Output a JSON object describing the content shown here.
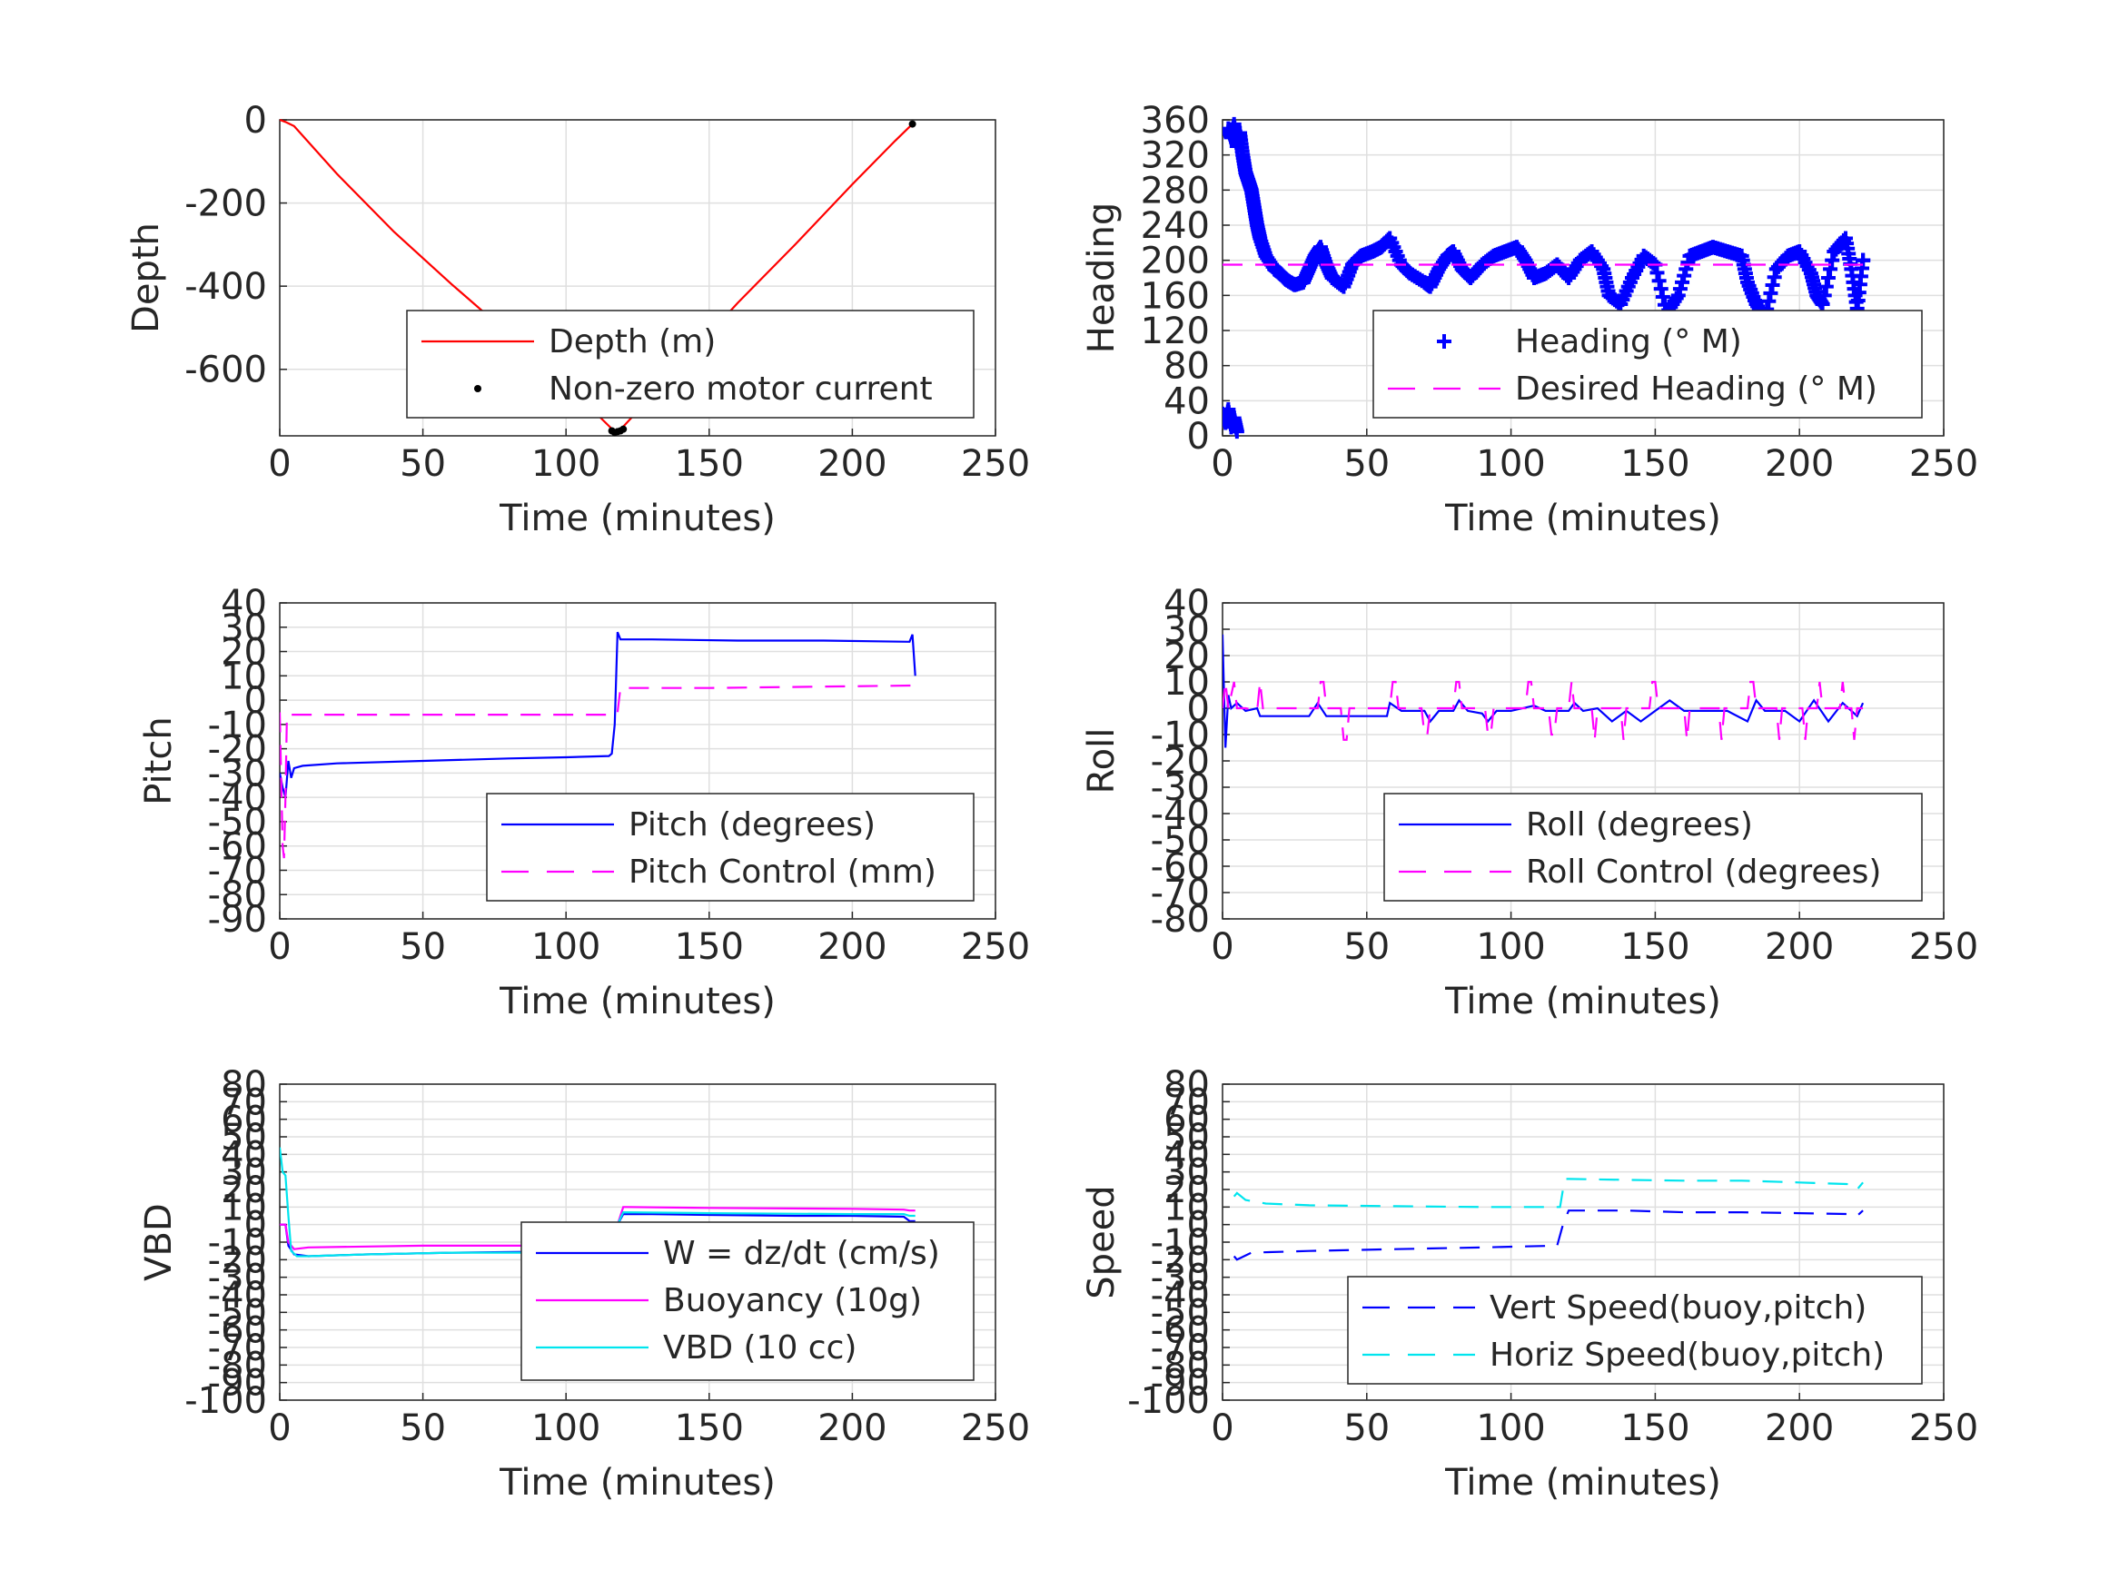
{
  "figure": {
    "panels": [
      {
        "id": "depth",
        "xlabel": "Time (minutes)",
        "ylabel": "Depth",
        "xticks": [
          "0",
          "50",
          "100",
          "150",
          "200",
          "250"
        ],
        "yticks": [
          "0",
          "-200",
          "-400",
          "-600"
        ],
        "legend": [
          "Depth (m)",
          "Non-zero motor current"
        ]
      },
      {
        "id": "heading",
        "xlabel": "Time (minutes)",
        "ylabel": "Heading",
        "xticks": [
          "0",
          "50",
          "100",
          "150",
          "200",
          "250"
        ],
        "yticks": [
          "360",
          "320",
          "280",
          "240",
          "200",
          "160",
          "120",
          "80",
          "40",
          "0"
        ],
        "legend": [
          "Heading (° M)",
          "Desired Heading (° M)"
        ]
      },
      {
        "id": "pitch",
        "xlabel": "Time (minutes)",
        "ylabel": "Pitch",
        "xticks": [
          "0",
          "50",
          "100",
          "150",
          "200",
          "250"
        ],
        "yticks": [
          "40",
          "30",
          "20",
          "10",
          "0",
          "-10",
          "-20",
          "-30",
          "-40",
          "-50",
          "-60",
          "-70",
          "-80",
          "-90"
        ],
        "legend": [
          "Pitch (degrees)",
          "Pitch Control (mm)"
        ]
      },
      {
        "id": "roll",
        "xlabel": "Time (minutes)",
        "ylabel": "Roll",
        "xticks": [
          "0",
          "50",
          "100",
          "150",
          "200",
          "250"
        ],
        "yticks": [
          "40",
          "30",
          "20",
          "10",
          "0",
          "-10",
          "-20",
          "-30",
          "-40",
          "-50",
          "-60",
          "-70",
          "-80"
        ],
        "legend": [
          "Roll (degrees)",
          "Roll Control (degrees)"
        ]
      },
      {
        "id": "vbd",
        "xlabel": "Time (minutes)",
        "ylabel": "VBD",
        "xticks": [
          "0",
          "50",
          "100",
          "150",
          "200",
          "250"
        ],
        "yticks": [
          "80",
          "70",
          "60",
          "50",
          "40",
          "30",
          "20",
          "10",
          "0",
          "-10",
          "-20",
          "-30",
          "-40",
          "-50",
          "-60",
          "-70",
          "-80",
          "-90",
          "-100"
        ],
        "legend": [
          "W = dz/dt (cm/s)",
          "Buoyancy (10g)",
          "VBD (10 cc)"
        ]
      },
      {
        "id": "speed",
        "xlabel": "Time (minutes)",
        "ylabel": "Speed",
        "xticks": [
          "0",
          "50",
          "100",
          "150",
          "200",
          "250"
        ],
        "yticks": [
          "80",
          "70",
          "60",
          "50",
          "40",
          "30",
          "20",
          "10",
          "0",
          "-10",
          "-20",
          "-30",
          "-40",
          "-50",
          "-60",
          "-70",
          "-80",
          "-90",
          "-100"
        ],
        "legend": [
          "Vert Speed(buoy,pitch)",
          "Horiz Speed(buoy,pitch)"
        ]
      }
    ]
  },
  "colors": {
    "red": "#ff0000",
    "blue": "#0000ff",
    "magenta": "#ff00ff",
    "cyan": "#00e5ee",
    "black": "#000000",
    "grid": "#dfdfdf",
    "axis": "#262626"
  },
  "chart_data": [
    {
      "type": "line",
      "panel": "depth",
      "xlabel": "Time (minutes)",
      "ylabel": "Depth",
      "xlim": [
        0,
        250
      ],
      "ylim": [
        -760,
        0
      ],
      "grid": true,
      "legend_position": "bottom-right",
      "series": [
        {
          "name": "Depth (m)",
          "color": "#ff0000",
          "style": "solid",
          "x": [
            0,
            2,
            5,
            20,
            40,
            60,
            80,
            100,
            117,
            119,
            140,
            160,
            180,
            200,
            215,
            221
          ],
          "y": [
            0,
            -5,
            -15,
            -130,
            -270,
            -395,
            -515,
            -635,
            -750,
            -745,
            -590,
            -440,
            -300,
            -155,
            -50,
            -10
          ]
        },
        {
          "name": "Non-zero motor current",
          "color": "#000000",
          "style": "points",
          "x": [
            116,
            117,
            118,
            119,
            120,
            221
          ],
          "y": [
            -748,
            -752,
            -750,
            -748,
            -744,
            -10
          ]
        }
      ]
    },
    {
      "type": "scatter",
      "panel": "heading",
      "xlabel": "Time (minutes)",
      "ylabel": "Heading",
      "xlim": [
        0,
        250
      ],
      "ylim": [
        0,
        360
      ],
      "grid": true,
      "legend_position": "bottom-right",
      "series": [
        {
          "name": "Heading (° M)",
          "color": "#0000ff",
          "style": "plus",
          "x": [
            0,
            1,
            2,
            3,
            4,
            5,
            2,
            3,
            4,
            5,
            6,
            7,
            8,
            9,
            10,
            11,
            12,
            13,
            15,
            18,
            20,
            22,
            25,
            28,
            30,
            32,
            34,
            36,
            38,
            42,
            45,
            48,
            52,
            55,
            58,
            62,
            65,
            70,
            72,
            75,
            78,
            80,
            83,
            86,
            90,
            94,
            98,
            102,
            105,
            108,
            112,
            116,
            120,
            124,
            128,
            132,
            134,
            138,
            142,
            146,
            150,
            154,
            158,
            162,
            166,
            170,
            175,
            180,
            182,
            185,
            188,
            192,
            196,
            200,
            204,
            206,
            208,
            212,
            216,
            218,
            220,
            222
          ],
          "y": [
            25,
            15,
            30,
            10,
            20,
            5,
            350,
            340,
            355,
            330,
            345,
            320,
            300,
            290,
            280,
            260,
            240,
            225,
            205,
            190,
            185,
            178,
            172,
            175,
            190,
            205,
            215,
            195,
            180,
            170,
            195,
            205,
            210,
            215,
            225,
            195,
            185,
            175,
            170,
            190,
            205,
            210,
            190,
            180,
            195,
            205,
            210,
            215,
            200,
            180,
            185,
            195,
            180,
            200,
            210,
            190,
            160,
            150,
            180,
            205,
            195,
            140,
            160,
            205,
            210,
            215,
            210,
            205,
            175,
            150,
            135,
            190,
            205,
            210,
            185,
            160,
            150,
            210,
            225,
            190,
            145,
            200
          ]
        },
        {
          "name": "Desired Heading (° M)",
          "color": "#ff00ff",
          "style": "dashed",
          "x": [
            0,
            222
          ],
          "y": [
            195,
            195
          ]
        }
      ]
    },
    {
      "type": "line",
      "panel": "pitch",
      "xlabel": "Time (minutes)",
      "ylabel": "Pitch",
      "xlim": [
        0,
        250
      ],
      "ylim": [
        -90,
        40
      ],
      "grid": true,
      "legend_position": "bottom-right",
      "series": [
        {
          "name": "Pitch (degrees)",
          "color": "#0000ff",
          "style": "solid",
          "x": [
            0,
            1,
            2,
            3,
            4,
            5,
            8,
            20,
            50,
            80,
            100,
            115,
            116,
            117,
            118,
            119,
            130,
            160,
            190,
            220,
            221,
            222
          ],
          "y": [
            -30,
            -36,
            -40,
            -25,
            -32,
            -28,
            -27,
            -26,
            -25,
            -24,
            -23.5,
            -23,
            -22,
            -10,
            28,
            25,
            25,
            24.5,
            24.5,
            24,
            27,
            10
          ]
        },
        {
          "name": "Pitch Control (mm)",
          "color": "#ff00ff",
          "style": "dashed",
          "x": [
            0,
            1,
            1.5,
            2,
            2.5,
            3,
            10,
            117,
            118,
            119,
            150,
            221
          ],
          "y": [
            -5,
            -60,
            -65,
            -40,
            -6,
            -6,
            -6,
            -6,
            -5,
            5,
            5,
            6
          ]
        }
      ]
    },
    {
      "type": "line",
      "panel": "roll",
      "xlabel": "Time (minutes)",
      "ylabel": "Roll",
      "xlim": [
        0,
        250
      ],
      "ylim": [
        -80,
        40
      ],
      "grid": true,
      "legend_position": "bottom-right",
      "series": [
        {
          "name": "Roll (degrees)",
          "color": "#0000ff",
          "style": "solid",
          "x": [
            0,
            1,
            2,
            3,
            5,
            8,
            12,
            13,
            30,
            33,
            36,
            45,
            57,
            58,
            62,
            70,
            72,
            75,
            80,
            82,
            85,
            90,
            92,
            95,
            100,
            108,
            112,
            120,
            122,
            125,
            130,
            135,
            140,
            145,
            150,
            155,
            160,
            175,
            182,
            185,
            188,
            195,
            200,
            205,
            210,
            215,
            220,
            222
          ],
          "y": [
            28,
            -15,
            5,
            0,
            2,
            -1,
            0,
            -3,
            -3,
            2,
            -3,
            -3,
            -3,
            2,
            -1,
            -1,
            -5,
            -1,
            -1,
            3,
            -1,
            -2,
            -5,
            -1,
            -1,
            1,
            -1,
            -1,
            2,
            -1,
            0,
            -5,
            -1,
            -5,
            -1,
            3,
            -1,
            -1,
            -5,
            3,
            -1,
            -1,
            -5,
            3,
            -5,
            2,
            -3,
            2
          ]
        },
        {
          "name": "Roll Control (degrees)",
          "color": "#ff00ff",
          "style": "dashed",
          "x": [
            0,
            1,
            2,
            4,
            5,
            8,
            12,
            13,
            14,
            33,
            34,
            35,
            36,
            41,
            42,
            43,
            44,
            58,
            59,
            60,
            61,
            69,
            70,
            71,
            72,
            80,
            81,
            82,
            83,
            91,
            92,
            93,
            94,
            105,
            106,
            107,
            108,
            113,
            114,
            115,
            116,
            120,
            121,
            122,
            128,
            129,
            130,
            138,
            139,
            140,
            148,
            149,
            150,
            151,
            160,
            161,
            162,
            172,
            173,
            174,
            182,
            183,
            184,
            185,
            192,
            193,
            194,
            201,
            202,
            203,
            206,
            207,
            208,
            214,
            215,
            216,
            218,
            219,
            220,
            222
          ],
          "y": [
            0,
            10,
            0,
            10,
            0,
            0,
            -1,
            10,
            0,
            0,
            10,
            10,
            0,
            0,
            -12,
            -12,
            0,
            0,
            10,
            10,
            0,
            0,
            -10,
            -10,
            0,
            0,
            10,
            10,
            0,
            0,
            -10,
            -10,
            0,
            0,
            10,
            10,
            0,
            0,
            -10,
            -10,
            0,
            0,
            10,
            0,
            0,
            -12,
            0,
            0,
            -12,
            0,
            0,
            10,
            10,
            0,
            0,
            -12,
            0,
            0,
            -12,
            0,
            0,
            10,
            10,
            0,
            0,
            -12,
            0,
            0,
            -12,
            0,
            0,
            10,
            0,
            0,
            10,
            0,
            0,
            -12,
            0,
            0
          ]
        }
      ]
    },
    {
      "type": "line",
      "panel": "vbd",
      "xlabel": "Time (minutes)",
      "ylabel": "VBD",
      "xlim": [
        0,
        250
      ],
      "ylim": [
        -100,
        80
      ],
      "grid": true,
      "legend_position": "bottom-right",
      "series": [
        {
          "name": "W = dz/dt (cm/s)",
          "color": "#0000ff",
          "style": "solid",
          "x": [
            0,
            2,
            3,
            5,
            10,
            30,
            60,
            90,
            110,
            116,
            117,
            118,
            120,
            130,
            150,
            180,
            200,
            218,
            220,
            222
          ],
          "y": [
            0,
            0,
            -12,
            -17,
            -18,
            -17,
            -16,
            -15.5,
            -15,
            -15,
            -10,
            0,
            6,
            6,
            5.5,
            5,
            5,
            4.5,
            2,
            2
          ]
        },
        {
          "name": "Buoyancy (10g)",
          "color": "#ff00ff",
          "style": "solid",
          "x": [
            0,
            2,
            3,
            5,
            10,
            50,
            100,
            117,
            118,
            120,
            121,
            150,
            200,
            218,
            220,
            222
          ],
          "y": [
            0,
            0,
            -10,
            -14,
            -13,
            -12,
            -12,
            -12,
            0,
            10,
            10,
            9.5,
            9,
            8.5,
            8,
            8
          ]
        },
        {
          "name": "VBD (10 cc)",
          "color": "#00e5ee",
          "style": "solid",
          "x": [
            0,
            1,
            2,
            3,
            4,
            6,
            10,
            30,
            60,
            90,
            117,
            118,
            120,
            150,
            200,
            218,
            220,
            222
          ],
          "y": [
            44,
            30,
            28,
            5,
            -15,
            -18,
            -18,
            -17,
            -16,
            -16,
            -15,
            0,
            7,
            6.5,
            6,
            6,
            5,
            5
          ]
        }
      ]
    },
    {
      "type": "line",
      "panel": "speed",
      "xlabel": "Time (minutes)",
      "ylabel": "Speed",
      "xlim": [
        0,
        250
      ],
      "ylim": [
        -100,
        80
      ],
      "grid": true,
      "legend_position": "bottom-right",
      "series": [
        {
          "name": "Vert Speed(buoy,pitch)",
          "color": "#0000ff",
          "style": "dashed",
          "x": [
            4,
            5,
            10,
            30,
            60,
            90,
            116,
            118,
            120,
            121,
            140,
            160,
            180,
            200,
            218,
            220,
            222
          ],
          "y": [
            -18,
            -20,
            -16,
            -15,
            -14,
            -13,
            -12,
            0,
            8,
            8,
            8,
            7,
            7,
            6.5,
            6,
            5,
            8
          ]
        },
        {
          "name": "Horiz Speed(buoy,pitch)",
          "color": "#00e5ee",
          "style": "dashed",
          "x": [
            4,
            5,
            8,
            15,
            30,
            60,
            90,
            117,
            118,
            119,
            120,
            140,
            160,
            180,
            200,
            218,
            220,
            222
          ],
          "y": [
            16,
            18,
            14,
            12,
            11,
            10.5,
            10,
            10,
            20,
            26,
            26,
            25.5,
            25,
            25,
            24,
            23,
            20,
            24
          ]
        }
      ]
    }
  ]
}
